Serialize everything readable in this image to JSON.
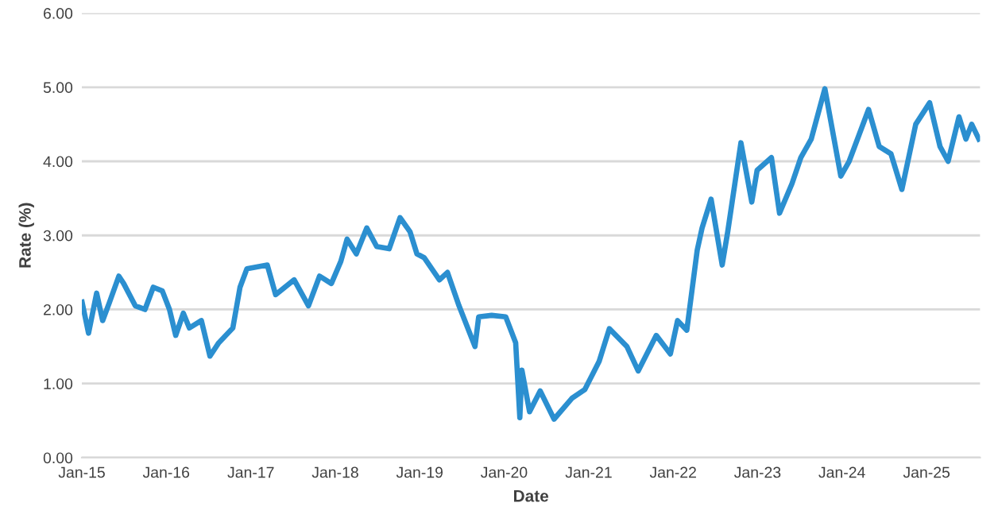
{
  "chart_data": {
    "type": "line",
    "xlabel": "Date",
    "ylabel": "Rate (%)",
    "x": [
      "2015-01-02",
      "2015-01-30",
      "2015-03-06",
      "2015-04-01",
      "2015-05-01",
      "2015-06-10",
      "2015-07-01",
      "2015-08-20",
      "2015-10-01",
      "2015-11-06",
      "2015-12-15",
      "2016-01-15",
      "2016-02-11",
      "2016-03-15",
      "2016-04-10",
      "2016-06-01",
      "2016-07-08",
      "2016-08-15",
      "2016-10-15",
      "2016-11-15",
      "2016-12-15",
      "2017-03-13",
      "2017-04-18",
      "2017-07-07",
      "2017-09-07",
      "2017-10-25",
      "2017-12-15",
      "2018-01-25",
      "2018-02-21",
      "2018-04-02",
      "2018-05-17",
      "2018-06-29",
      "2018-08-22",
      "2018-10-08",
      "2018-11-20",
      "2018-12-20",
      "2019-01-20",
      "2019-03-27",
      "2019-05-01",
      "2019-06-20",
      "2019-08-28",
      "2019-09-13",
      "2019-11-08",
      "2020-01-08",
      "2020-02-20",
      "2020-03-09",
      "2020-03-18",
      "2020-04-20",
      "2020-06-05",
      "2020-08-04",
      "2020-10-20",
      "2020-12-15",
      "2021-02-15",
      "2021-03-31",
      "2021-06-15",
      "2021-08-03",
      "2021-10-20",
      "2021-12-20",
      "2022-01-20",
      "2022-03-01",
      "2022-04-15",
      "2022-05-06",
      "2022-06-14",
      "2022-08-01",
      "2022-08-25",
      "2022-10-21",
      "2022-12-07",
      "2022-12-30",
      "2023-03-02",
      "2023-04-06",
      "2023-05-30",
      "2023-07-07",
      "2023-08-21",
      "2023-10-19",
      "2023-12-27",
      "2024-02-01",
      "2024-04-25",
      "2024-06-10",
      "2024-07-31",
      "2024-09-16",
      "2024-11-15",
      "2025-01-14",
      "2025-02-28",
      "2025-04-04",
      "2025-05-21",
      "2025-06-20",
      "2025-07-15",
      "2025-08-15"
    ],
    "series": [
      {
        "color": "#2b8fd0",
        "values": [
          2.1,
          1.68,
          2.22,
          1.85,
          2.1,
          2.45,
          2.35,
          2.05,
          2.0,
          2.3,
          2.25,
          2.0,
          1.65,
          1.95,
          1.75,
          1.85,
          1.37,
          1.55,
          1.75,
          2.3,
          2.55,
          2.6,
          2.2,
          2.4,
          2.05,
          2.45,
          2.35,
          2.65,
          2.95,
          2.75,
          3.1,
          2.85,
          2.82,
          3.24,
          3.05,
          2.75,
          2.7,
          2.4,
          2.5,
          2.05,
          1.5,
          1.9,
          1.92,
          1.9,
          1.55,
          0.54,
          1.18,
          0.62,
          0.9,
          0.52,
          0.8,
          0.92,
          1.3,
          1.74,
          1.5,
          1.17,
          1.65,
          1.4,
          1.85,
          1.72,
          2.8,
          3.1,
          3.49,
          2.6,
          3.05,
          4.25,
          3.45,
          3.88,
          4.05,
          3.3,
          3.7,
          4.05,
          4.3,
          4.98,
          3.8,
          4.0,
          4.7,
          4.2,
          4.1,
          3.62,
          4.5,
          4.79,
          4.2,
          4.0,
          4.6,
          4.3,
          4.5,
          4.3
        ]
      }
    ],
    "xlim": [
      "2015-01-01",
      "2025-08-20"
    ],
    "ylim": [
      0,
      6
    ],
    "xticks": [
      {
        "value": "2015-01-01",
        "label": "Jan-15"
      },
      {
        "value": "2016-01-01",
        "label": "Jan-16"
      },
      {
        "value": "2017-01-01",
        "label": "Jan-17"
      },
      {
        "value": "2018-01-01",
        "label": "Jan-18"
      },
      {
        "value": "2019-01-01",
        "label": "Jan-19"
      },
      {
        "value": "2020-01-01",
        "label": "Jan-20"
      },
      {
        "value": "2021-01-01",
        "label": "Jan-21"
      },
      {
        "value": "2022-01-01",
        "label": "Jan-22"
      },
      {
        "value": "2023-01-01",
        "label": "Jan-23"
      },
      {
        "value": "2024-01-01",
        "label": "Jan-24"
      },
      {
        "value": "2025-01-01",
        "label": "Jan-25"
      }
    ],
    "yticks": [
      {
        "value": 0,
        "label": "0.00"
      },
      {
        "value": 1,
        "label": "1.00"
      },
      {
        "value": 2,
        "label": "2.00"
      },
      {
        "value": 3,
        "label": "3.00"
      },
      {
        "value": 4,
        "label": "4.00"
      },
      {
        "value": 5,
        "label": "5.00"
      },
      {
        "value": 6,
        "label": "6.00"
      }
    ],
    "grid": "y",
    "line_style": "solid"
  }
}
